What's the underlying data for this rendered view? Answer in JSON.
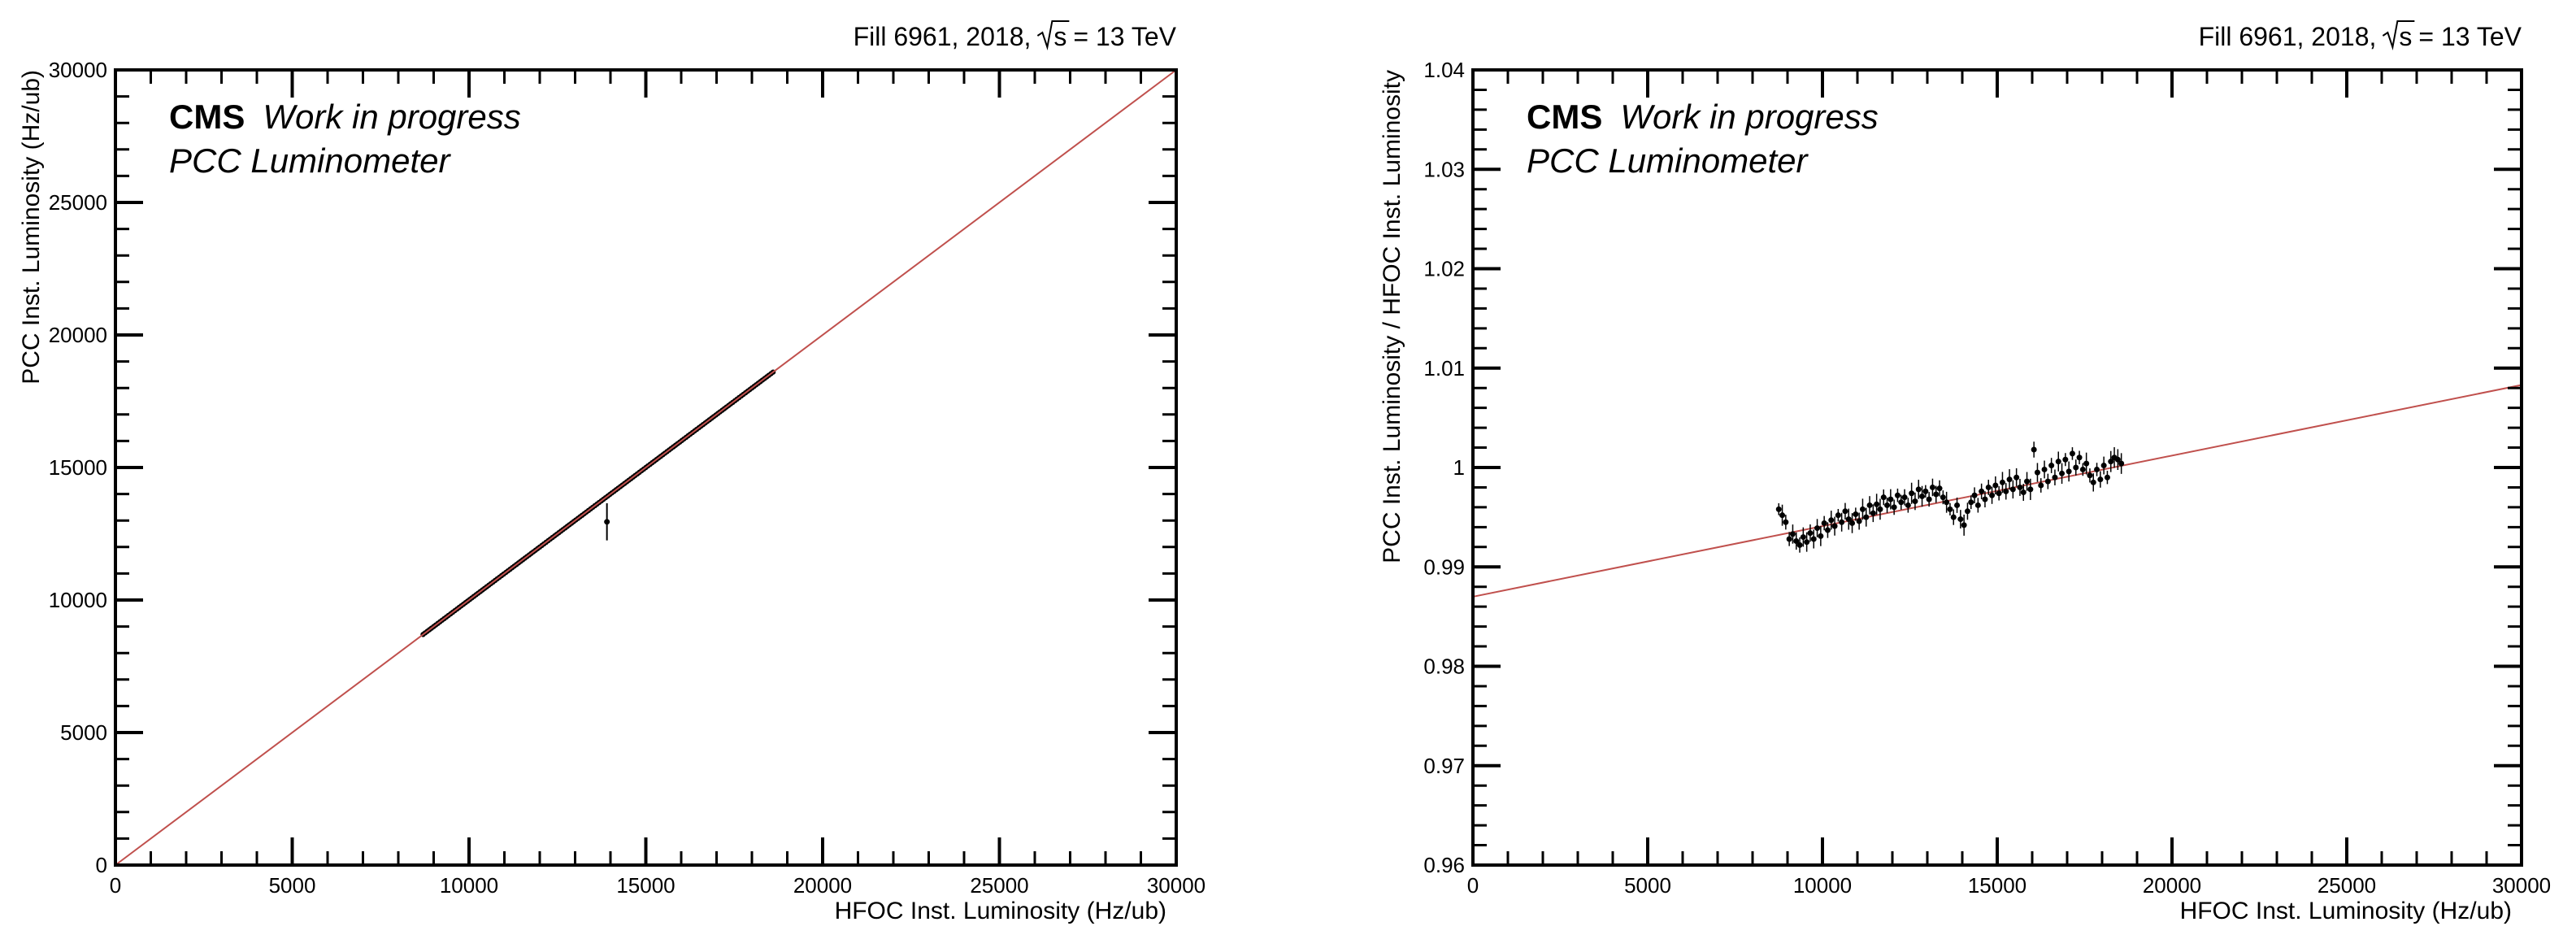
{
  "chart_data": [
    {
      "type": "scatter",
      "header": {
        "fill": "Fill 6961, 2018,",
        "sqrt_s": "s",
        "energy": "= 13 TeV"
      },
      "label_cms": "CMS",
      "label_wip": "Work in progress",
      "label_sub": "PCC Luminometer",
      "xlabel": "HFOC Inst. Luminosity (Hz/ub)",
      "ylabel": "PCC Inst. Luminosity (Hz/ub)",
      "xlim": [
        0,
        30000
      ],
      "ylim": [
        0,
        30000
      ],
      "x_ticks": [
        0,
        5000,
        10000,
        15000,
        20000,
        25000,
        30000
      ],
      "y_ticks": [
        0,
        5000,
        10000,
        15000,
        20000,
        25000,
        30000
      ],
      "x_tick_labels": [
        "0",
        "5000",
        "10000",
        "15000",
        "20000",
        "25000",
        "30000"
      ],
      "y_tick_labels": [
        "0",
        "5000",
        "10000",
        "15000",
        "20000",
        "25000",
        "30000"
      ],
      "grid": false,
      "fit_line": {
        "color": "#c0504d",
        "points": [
          [
            0,
            0
          ],
          [
            30000,
            30000
          ]
        ]
      },
      "outlier": {
        "x": 13900,
        "y": 12950,
        "err": 700
      },
      "series": [
        {
          "color": "#000000",
          "x_start": 8700,
          "x_end": 18600,
          "slope": 1.0,
          "offset": 0,
          "scatter": 0.004
        }
      ]
    },
    {
      "type": "scatter",
      "header": {
        "fill": "Fill 6961, 2018,",
        "sqrt_s": "s",
        "energy": "= 13 TeV"
      },
      "label_cms": "CMS",
      "label_wip": "Work in progress",
      "label_sub": "PCC Luminometer",
      "xlabel": "HFOC Inst. Luminosity (Hz/ub)",
      "ylabel": "PCC Inst. Luminosity  / HFOC Inst. Luminosity",
      "xlim": [
        0,
        30000
      ],
      "ylim": [
        0.96,
        1.04
      ],
      "x_ticks": [
        0,
        5000,
        10000,
        15000,
        20000,
        25000,
        30000
      ],
      "y_ticks": [
        0.96,
        0.97,
        0.98,
        0.99,
        1.0,
        1.01,
        1.02,
        1.03,
        1.04
      ],
      "x_tick_labels": [
        "0",
        "5000",
        "10000",
        "15000",
        "20000",
        "25000",
        "30000"
      ],
      "y_tick_labels": [
        "0.96",
        "0.97",
        "0.98",
        "0.99",
        "1",
        "1.01",
        "1.02",
        "1.03",
        "1.04"
      ],
      "grid": false,
      "fit_line": {
        "color": "#c0504d",
        "points": [
          [
            0,
            0.987
          ],
          [
            30000,
            1.0083
          ]
        ]
      },
      "ratio_points": [
        [
          8750,
          0.9958
        ],
        [
          8850,
          0.9952
        ],
        [
          8950,
          0.9945
        ],
        [
          9050,
          0.9928
        ],
        [
          9150,
          0.9933
        ],
        [
          9250,
          0.9926
        ],
        [
          9350,
          0.9922
        ],
        [
          9450,
          0.993
        ],
        [
          9550,
          0.9925
        ],
        [
          9650,
          0.9934
        ],
        [
          9750,
          0.9928
        ],
        [
          9850,
          0.9939
        ],
        [
          9950,
          0.9931
        ],
        [
          10050,
          0.9944
        ],
        [
          10150,
          0.9937
        ],
        [
          10250,
          0.9947
        ],
        [
          10350,
          0.9941
        ],
        [
          10450,
          0.9952
        ],
        [
          10550,
          0.9945
        ],
        [
          10650,
          0.9956
        ],
        [
          10750,
          0.9948
        ],
        [
          10850,
          0.9944
        ],
        [
          10950,
          0.9953
        ],
        [
          11050,
          0.9946
        ],
        [
          11150,
          0.9958
        ],
        [
          11250,
          0.995
        ],
        [
          11350,
          0.9962
        ],
        [
          11450,
          0.9954
        ],
        [
          11550,
          0.9963
        ],
        [
          11650,
          0.9958
        ],
        [
          11750,
          0.997
        ],
        [
          11850,
          0.9962
        ],
        [
          11950,
          0.9968
        ],
        [
          12050,
          0.996
        ],
        [
          12150,
          0.9972
        ],
        [
          12250,
          0.9965
        ],
        [
          12350,
          0.997
        ],
        [
          12450,
          0.9962
        ],
        [
          12550,
          0.9974
        ],
        [
          12650,
          0.9966
        ],
        [
          12750,
          0.9978
        ],
        [
          12850,
          0.9971
        ],
        [
          12950,
          0.9976
        ],
        [
          13050,
          0.9968
        ],
        [
          13150,
          0.998
        ],
        [
          13250,
          0.9973
        ],
        [
          13350,
          0.9979
        ],
        [
          13450,
          0.997
        ],
        [
          13550,
          0.9965
        ],
        [
          13650,
          0.9958
        ],
        [
          13750,
          0.995
        ],
        [
          13850,
          0.9962
        ],
        [
          13950,
          0.9948
        ],
        [
          14050,
          0.9942
        ],
        [
          14150,
          0.9956
        ],
        [
          14250,
          0.9965
        ],
        [
          14350,
          0.9972
        ],
        [
          14450,
          0.9962
        ],
        [
          14550,
          0.9976
        ],
        [
          14650,
          0.9968
        ],
        [
          14750,
          0.998
        ],
        [
          14850,
          0.9972
        ],
        [
          14950,
          0.9982
        ],
        [
          15050,
          0.9974
        ],
        [
          15150,
          0.9985
        ],
        [
          15250,
          0.9976
        ],
        [
          15350,
          0.9988
        ],
        [
          15450,
          0.9978
        ],
        [
          15550,
          0.999
        ],
        [
          15650,
          0.998
        ],
        [
          15750,
          0.9975
        ],
        [
          15850,
          0.9986
        ],
        [
          15950,
          0.9978
        ],
        [
          16050,
          1.0018
        ],
        [
          16150,
          0.9995
        ],
        [
          16250,
          0.9982
        ],
        [
          16350,
          0.9998
        ],
        [
          16450,
          0.9986
        ],
        [
          16550,
          1.0002
        ],
        [
          16650,
          0.999
        ],
        [
          16750,
          1.0006
        ],
        [
          16850,
          0.9994
        ],
        [
          16950,
          1.0008
        ],
        [
          17050,
          0.9996
        ],
        [
          17150,
          1.0014
        ],
        [
          17250,
          1.0
        ],
        [
          17350,
          1.001
        ],
        [
          17450,
          0.9998
        ],
        [
          17550,
          1.0004
        ],
        [
          17650,
          0.9992
        ],
        [
          17750,
          0.9985
        ],
        [
          17850,
          0.9998
        ],
        [
          17950,
          0.9988
        ],
        [
          18050,
          1.0002
        ],
        [
          18150,
          0.999
        ],
        [
          18250,
          1.0006
        ],
        [
          18350,
          1.001
        ],
        [
          18450,
          1.0008
        ],
        [
          18550,
          1.0004
        ]
      ]
    }
  ]
}
